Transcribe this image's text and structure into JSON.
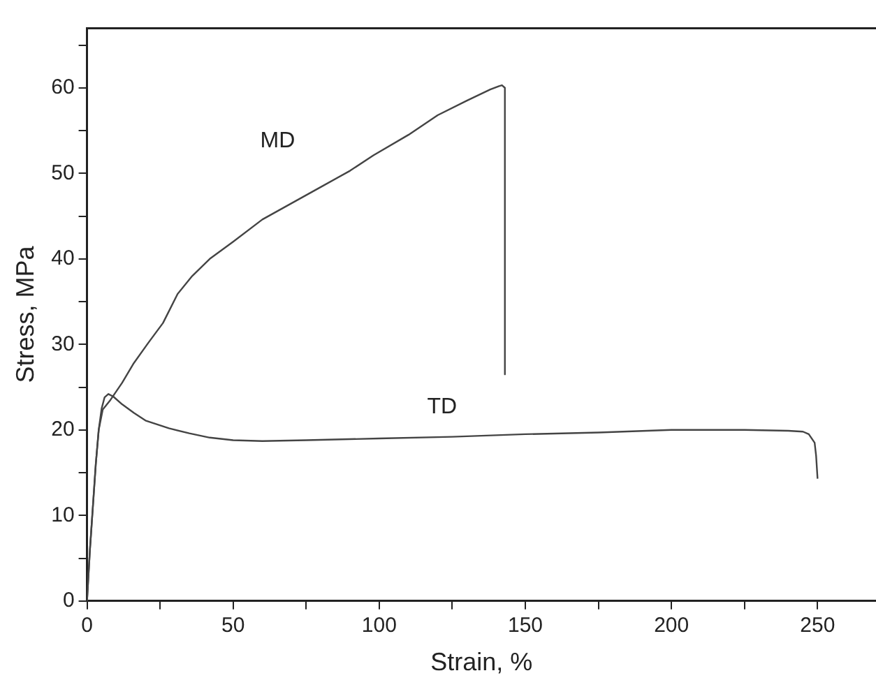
{
  "chart_data": {
    "type": "line",
    "xlabel": "Strain, %",
    "ylabel": "Stress, MPa",
    "xlim": [
      0,
      270
    ],
    "xticks": [
      0,
      {
        "value": 25,
        "label": null
      },
      50,
      {
        "value": 75,
        "label": null
      },
      100,
      {
        "value": 125,
        "label": null
      },
      150,
      {
        "value": 175,
        "label": null
      },
      200,
      {
        "value": 225,
        "label": null
      },
      250
    ],
    "ylim": [
      0,
      67
    ],
    "yticks": [
      0,
      {
        "value": 5,
        "label": null
      },
      10,
      {
        "value": 15,
        "label": null
      },
      20,
      {
        "value": 25,
        "label": null
      },
      30,
      {
        "value": 35,
        "label": null
      },
      40,
      {
        "value": 45,
        "label": null
      },
      50,
      {
        "value": 55,
        "label": null
      },
      60,
      {
        "value": 65,
        "label": null
      }
    ],
    "grid": false,
    "legend": false,
    "marker": "none",
    "line_style": "solid",
    "series": [
      {
        "name": "MD",
        "color": "#444444",
        "x": [
          0,
          1,
          2,
          3,
          4,
          5.4,
          8,
          12,
          16,
          21,
          26,
          31,
          36,
          42,
          50,
          60,
          70,
          80,
          90,
          98,
          110,
          120,
          130,
          138,
          141,
          142,
          143,
          143
        ],
        "values": [
          0,
          6,
          11,
          16,
          20,
          22.4,
          23.5,
          25.5,
          27.8,
          30.2,
          32.5,
          35.9,
          38,
          40,
          42,
          44.6,
          46.5,
          48.4,
          50.3,
          52.1,
          54.5,
          56.8,
          58.5,
          59.8,
          60.2,
          60.3,
          60,
          26.5
        ]
      },
      {
        "name": "TD",
        "color": "#444444",
        "x": [
          0,
          1,
          2,
          3,
          4,
          5,
          6,
          7.3,
          9,
          12,
          16,
          20,
          28,
          35,
          42,
          50,
          60,
          75,
          100,
          125,
          150,
          175,
          200,
          225,
          240,
          245,
          247,
          249,
          249.5,
          250
        ],
        "values": [
          0,
          6,
          11,
          16,
          20,
          22.5,
          23.8,
          24.2,
          23.9,
          23,
          22,
          21.1,
          20.2,
          19.6,
          19.1,
          18.8,
          18.7,
          18.8,
          19,
          19.2,
          19.5,
          19.7,
          20,
          20,
          19.9,
          19.8,
          19.5,
          18.5,
          17,
          14.3
        ]
      }
    ]
  }
}
